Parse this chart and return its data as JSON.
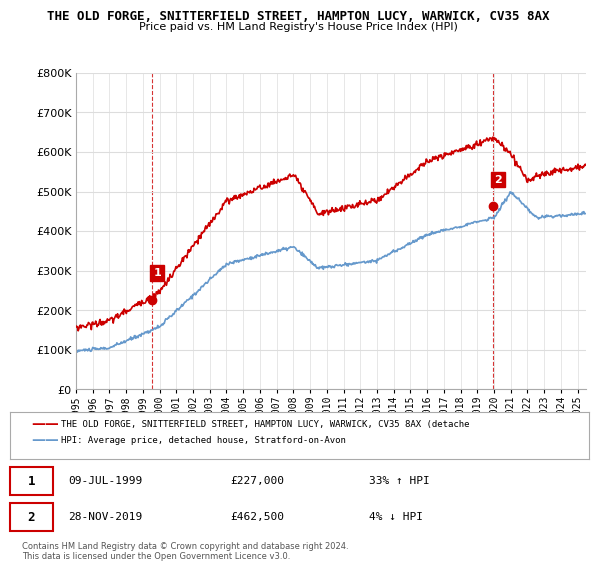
{
  "title1": "THE OLD FORGE, SNITTERFIELD STREET, HAMPTON LUCY, WARWICK, CV35 8AX",
  "title2": "Price paid vs. HM Land Registry's House Price Index (HPI)",
  "ylabel_ticks": [
    "£0",
    "£100K",
    "£200K",
    "£300K",
    "£400K",
    "£500K",
    "£600K",
    "£700K",
    "£800K"
  ],
  "ytick_values": [
    0,
    100000,
    200000,
    300000,
    400000,
    500000,
    600000,
    700000,
    800000
  ],
  "ylim": [
    0,
    800000
  ],
  "legend_label_red": "THE OLD FORGE, SNITTERFIELD STREET, HAMPTON LUCY, WARWICK, CV35 8AX (detache",
  "legend_label_blue": "HPI: Average price, detached house, Stratford-on-Avon",
  "point1_date": "09-JUL-1999",
  "point1_price": "£227,000",
  "point1_hpi": "33% ↑ HPI",
  "point2_date": "28-NOV-2019",
  "point2_price": "£462,500",
  "point2_hpi": "4% ↓ HPI",
  "footer": "Contains HM Land Registry data © Crown copyright and database right 2024.\nThis data is licensed under the Open Government Licence v3.0.",
  "red_color": "#cc0000",
  "blue_color": "#6699cc",
  "grid_color": "#dddddd",
  "point1_x_year": 1999.52,
  "point1_y": 227000,
  "point2_x_year": 2019.91,
  "point2_y": 462500,
  "xlim_start": 1995.0,
  "xlim_end": 2025.5
}
